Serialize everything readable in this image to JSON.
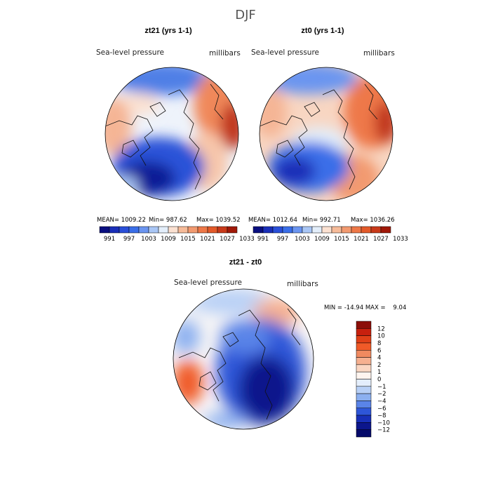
{
  "figure": {
    "suptitle": "DJF"
  },
  "chart_data": [
    {
      "type": "heatmap",
      "title": "zt21 (yrs 1-1)",
      "variable": "Sea-level pressure",
      "units": "millibars",
      "stats": {
        "mean": "MEAN= 1009.22",
        "min": "Min= 987.62",
        "max": "Max= 1039.52"
      },
      "colorbar": {
        "orientation": "horizontal",
        "tick_labels": [
          "991",
          "997",
          "1003",
          "1009",
          "1015",
          "1021",
          "1027",
          "1033"
        ],
        "colors": [
          "#0a0f80",
          "#1a2fb8",
          "#2a4fd8",
          "#3a6ee8",
          "#6b95f0",
          "#a9c6f5",
          "#e3eefa",
          "#fbe1d1",
          "#f6bb99",
          "#f29a70",
          "#ee7848",
          "#e35a2a",
          "#c83a1a",
          "#a01808"
        ]
      }
    },
    {
      "type": "heatmap",
      "title": "zt0 (yrs 1-1)",
      "variable": "Sea-level pressure",
      "units": "millibars",
      "stats": {
        "mean": "MEAN= 1012.64",
        "min": "Min= 992.71",
        "max": "Max= 1036.26"
      },
      "colorbar": {
        "orientation": "horizontal",
        "tick_labels": [
          "991",
          "997",
          "1003",
          "1009",
          "1015",
          "1021",
          "1027",
          "1033"
        ],
        "colors": [
          "#0a0f80",
          "#1a2fb8",
          "#2a4fd8",
          "#3a6ee8",
          "#6b95f0",
          "#a9c6f5",
          "#e3eefa",
          "#fbe1d1",
          "#f6bb99",
          "#f29a70",
          "#ee7848",
          "#e35a2a",
          "#c83a1a",
          "#a01808"
        ]
      }
    },
    {
      "type": "heatmap",
      "title": "zt21 - zt0",
      "variable": "Sea-level pressure",
      "units": "millibars",
      "stats": {
        "minmax": "MIN = -14.94 MAX =    9.04"
      },
      "colorbar": {
        "orientation": "vertical",
        "tick_labels": [
          "12",
          "10",
          "8",
          "6",
          "4",
          "2",
          "1",
          "0",
          "−1",
          "−2",
          "−4",
          "−6",
          "−8",
          "−10",
          "−12"
        ],
        "colors": [
          "#8c0e08",
          "#c8200e",
          "#e04018",
          "#f05a28",
          "#f08a60",
          "#f6b090",
          "#fad6c2",
          "#fff4ee",
          "#e4eefc",
          "#b8d0f6",
          "#8cb0f0",
          "#5a84e8",
          "#2e56d8",
          "#1830b8",
          "#0c168c",
          "#050a6a"
        ]
      }
    }
  ]
}
